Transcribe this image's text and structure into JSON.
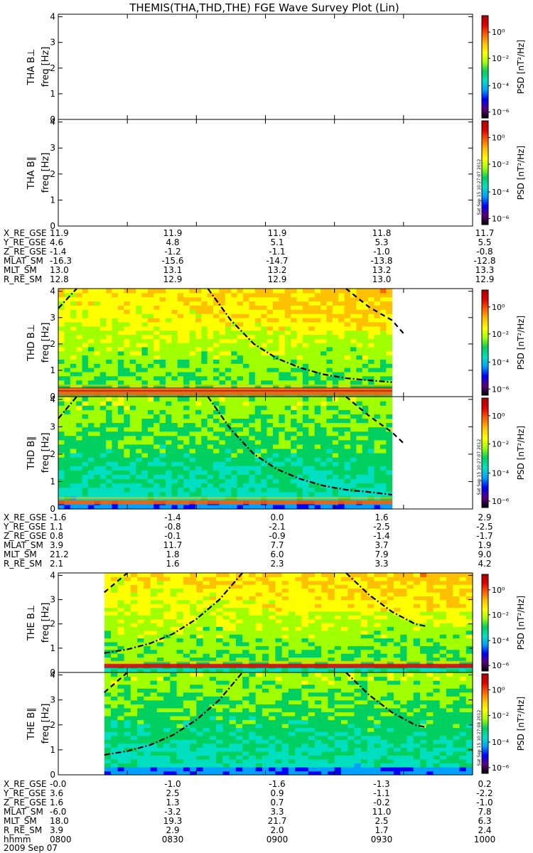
{
  "title": "THEMIS(THA,THD,THE) FGE Wave Survey Plot (Lin)",
  "colors": {
    "background": "#ffffff",
    "axis": "#000000",
    "colorbar_stops": [
      "#000000",
      "#5a0080",
      "#0000ff",
      "#00a0ff",
      "#00e0c0",
      "#00d060",
      "#a0ff00",
      "#ffff00",
      "#ffc000",
      "#ff6000",
      "#e00000",
      "#b00000"
    ]
  },
  "colorbar": {
    "label": "PSD [nT²/Hz]",
    "ticks": [
      "10⁰",
      "10⁻²",
      "10⁻⁴",
      "10⁻⁶"
    ],
    "stamps": [
      "Sat Sep 15 10:27:07 2012",
      "Sat Sep 15 10:27:07 2012",
      "Sat Sep 15 10:27:08 2012"
    ]
  },
  "panels": [
    {
      "probe": "THA",
      "component": "B⊥",
      "ylabel_probe": "THA B⊥",
      "ylabel_unit": "freq [Hz]",
      "has_data": false
    },
    {
      "probe": "THA",
      "component": "B∥",
      "ylabel_probe": "THA B∥",
      "ylabel_unit": "freq [Hz]",
      "has_data": false
    },
    {
      "probe": "THD",
      "component": "B⊥",
      "ylabel_probe": "THD B⊥",
      "ylabel_unit": "freq [Hz]",
      "has_data": true
    },
    {
      "probe": "THD",
      "component": "B∥",
      "ylabel_probe": "THD B∥",
      "ylabel_unit": "freq [Hz]",
      "has_data": true
    },
    {
      "probe": "THE",
      "component": "B⊥",
      "ylabel_probe": "THE B⊥",
      "ylabel_unit": "freq [Hz]",
      "has_data": true
    },
    {
      "probe": "THE",
      "component": "B∥",
      "ylabel_probe": "THE B∥",
      "ylabel_unit": "freq [Hz]",
      "has_data": true
    }
  ],
  "ephemeris_blocks": [
    {
      "probe": "THA",
      "rows": [
        {
          "label": "X_RE_GSE",
          "values": [
            "11.9",
            "11.9",
            "11.9",
            "11.8",
            "11.7"
          ]
        },
        {
          "label": "Y_RE_GSE",
          "values": [
            "4.6",
            "4.8",
            "5.1",
            "5.3",
            "5.5"
          ]
        },
        {
          "label": "Z_RE_GSE",
          "values": [
            "-1.4",
            "-1.2",
            "-1.1",
            "-1.0",
            "-0.8"
          ]
        },
        {
          "label": "MLAT_SM",
          "values": [
            "-16.3",
            "-15.6",
            "-14.7",
            "-13.8",
            "-12.8"
          ]
        },
        {
          "label": "MLT_SM",
          "values": [
            "13.0",
            "13.1",
            "13.2",
            "13.2",
            "13.3"
          ]
        },
        {
          "label": "R_RE_SM",
          "values": [
            "12.8",
            "12.9",
            "12.9",
            "13.0",
            "12.9"
          ]
        }
      ]
    },
    {
      "probe": "THD",
      "rows": [
        {
          "label": "X_RE_GSE",
          "values": [
            "-1.6",
            "-1.4",
            "0.0",
            "1.6",
            "2.9"
          ]
        },
        {
          "label": "Y_RE_GSE",
          "values": [
            "1.1",
            "-0.8",
            "-2.1",
            "-2.5",
            "-2.5"
          ]
        },
        {
          "label": "Z_RE_GSE",
          "values": [
            "0.8",
            "-0.1",
            "-0.9",
            "-1.4",
            "-1.7"
          ]
        },
        {
          "label": "MLAT_SM",
          "values": [
            "3.9",
            "11.7",
            "7.7",
            "3.7",
            "1.9"
          ]
        },
        {
          "label": "MLT_SM",
          "values": [
            "21.2",
            "1.8",
            "6.0",
            "7.9",
            "9.0"
          ]
        },
        {
          "label": "R_RE_SM",
          "values": [
            "2.1",
            "1.6",
            "2.3",
            "3.3",
            "4.2"
          ]
        }
      ]
    },
    {
      "probe": "THE",
      "rows": [
        {
          "label": "X_RE_GSE",
          "values": [
            "-0.0",
            "-1.0",
            "-1.6",
            "-1.3",
            "0.2"
          ]
        },
        {
          "label": "Y_RE_GSE",
          "values": [
            "3.6",
            "2.5",
            "0.9",
            "-1.1",
            "-2.2"
          ]
        },
        {
          "label": "Z_RE_GSE",
          "values": [
            "1.6",
            "1.3",
            "0.7",
            "-0.2",
            "-1.0"
          ]
        },
        {
          "label": "MLAT_SM",
          "values": [
            "-6.0",
            "-3.2",
            "3.3",
            "11.0",
            "7.8"
          ]
        },
        {
          "label": "MLT_SM",
          "values": [
            "18.0",
            "19.3",
            "21.7",
            "2.5",
            "6.3"
          ]
        },
        {
          "label": "R_RE_SM",
          "values": [
            "3.9",
            "2.9",
            "2.0",
            "1.7",
            "2.4"
          ]
        },
        {
          "label": "hhmm",
          "values": [
            "0800",
            "0830",
            "0900",
            "0930",
            "1000"
          ]
        }
      ]
    }
  ],
  "date_label": "2009 Sep 07",
  "chart_data": [
    {
      "type": "heatmap",
      "title": "THA B⊥",
      "ylabel": "freq [Hz]",
      "ylim": [
        0,
        4.1
      ],
      "yticks": [
        0,
        1,
        2,
        3,
        4
      ],
      "values": []
    },
    {
      "type": "heatmap",
      "title": "THA B∥",
      "ylabel": "freq [Hz]",
      "ylim": [
        0,
        4.1
      ],
      "yticks": [
        0,
        1,
        2,
        3,
        4
      ],
      "values": []
    },
    {
      "type": "heatmap",
      "title": "THD B⊥",
      "ylabel": "freq [Hz]",
      "ylim": [
        0,
        4.1
      ],
      "yticks": [
        0,
        1,
        2,
        3,
        4
      ],
      "x": [
        "0800",
        "0830",
        "0900",
        "0930",
        "1000"
      ],
      "data_coverage_hhmm": [
        "0800",
        "0945"
      ],
      "bands_hz": [
        {
          "freq": 0.27,
          "level": "high"
        },
        {
          "freq": 0.12,
          "level": "medium"
        }
      ],
      "gyro_lines": [
        {
          "style": "dash-dot",
          "points": [
            [
              0,
              3.35
            ],
            [
              8,
              4.1
            ]
          ]
        },
        {
          "style": "dash-dot",
          "points": [
            [
              65,
              4.1
            ],
            [
              75,
              2.9
            ],
            [
              85,
              2.0
            ],
            [
              95,
              1.45
            ],
            [
              105,
              1.1
            ],
            [
              115,
              0.85
            ],
            [
              125,
              0.7
            ],
            [
              135,
              0.62
            ],
            [
              145,
              0.55
            ]
          ]
        },
        {
          "style": "dash",
          "points": [
            [
              125,
              4.1
            ],
            [
              135,
              3.4
            ],
            [
              145,
              2.9
            ],
            [
              150,
              2.4
            ]
          ]
        }
      ]
    },
    {
      "type": "heatmap",
      "title": "THD B∥",
      "ylabel": "freq [Hz]",
      "ylim": [
        0,
        4.1
      ],
      "yticks": [
        0,
        1,
        2,
        3,
        4
      ],
      "x": [
        "0800",
        "0830",
        "0900",
        "0930",
        "1000"
      ],
      "data_coverage_hhmm": [
        "0800",
        "0945"
      ],
      "bands_hz": [
        {
          "freq": 0.25,
          "level": "medium"
        }
      ],
      "gyro_lines": [
        {
          "style": "dash-dot",
          "points": [
            [
              0,
              3.3
            ],
            [
              8,
              4.1
            ]
          ]
        },
        {
          "style": "dash-dot",
          "points": [
            [
              65,
              4.1
            ],
            [
              75,
              2.9
            ],
            [
              85,
              2.0
            ],
            [
              95,
              1.45
            ],
            [
              105,
              1.1
            ],
            [
              115,
              0.85
            ],
            [
              125,
              0.7
            ],
            [
              135,
              0.62
            ],
            [
              145,
              0.52
            ]
          ]
        },
        {
          "style": "dash",
          "points": [
            [
              125,
              4.1
            ],
            [
              135,
              3.4
            ],
            [
              145,
              2.8
            ],
            [
              150,
              2.4
            ]
          ]
        }
      ]
    },
    {
      "type": "heatmap",
      "title": "THE B⊥",
      "ylabel": "freq [Hz]",
      "ylim": [
        0,
        4.1
      ],
      "yticks": [
        0,
        1,
        2,
        3,
        4
      ],
      "x": [
        "0800",
        "0830",
        "0900",
        "0930",
        "1000"
      ],
      "data_coverage_hhmm": [
        "0820",
        "1000"
      ],
      "bands_hz": [
        {
          "freq": 0.27,
          "level": "high"
        }
      ],
      "gyro_lines": [
        {
          "style": "dash",
          "points": [
            [
              20,
              3.3
            ],
            [
              30,
              4.1
            ]
          ]
        },
        {
          "style": "dash-dot",
          "points": [
            [
              20,
              0.8
            ],
            [
              30,
              0.95
            ],
            [
              40,
              1.2
            ],
            [
              50,
              1.6
            ],
            [
              60,
              2.2
            ],
            [
              70,
              3.0
            ],
            [
              80,
              4.1
            ]
          ]
        },
        {
          "style": "dash-dot",
          "points": [
            [
              125,
              4.1
            ],
            [
              135,
              3.2
            ],
            [
              145,
              2.5
            ],
            [
              155,
              2.0
            ],
            [
              160,
              1.9
            ]
          ]
        }
      ]
    },
    {
      "type": "heatmap",
      "title": "THE B∥",
      "ylabel": "freq [Hz]",
      "ylim": [
        0,
        4.1
      ],
      "yticks": [
        0,
        1,
        2,
        3,
        4
      ],
      "x": [
        "0800",
        "0830",
        "0900",
        "0930",
        "1000"
      ],
      "data_coverage_hhmm": [
        "0820",
        "1000"
      ],
      "bands_hz": [],
      "gyro_lines": [
        {
          "style": "dash",
          "points": [
            [
              20,
              3.3
            ],
            [
              30,
              4.1
            ]
          ]
        },
        {
          "style": "dash-dot",
          "points": [
            [
              20,
              0.8
            ],
            [
              30,
              0.95
            ],
            [
              40,
              1.2
            ],
            [
              50,
              1.6
            ],
            [
              60,
              2.2
            ],
            [
              70,
              3.0
            ],
            [
              80,
              4.1
            ]
          ]
        },
        {
          "style": "dash-dot",
          "points": [
            [
              125,
              4.1
            ],
            [
              135,
              3.2
            ],
            [
              145,
              2.5
            ],
            [
              155,
              2.0
            ],
            [
              160,
              1.9
            ]
          ]
        }
      ]
    }
  ]
}
